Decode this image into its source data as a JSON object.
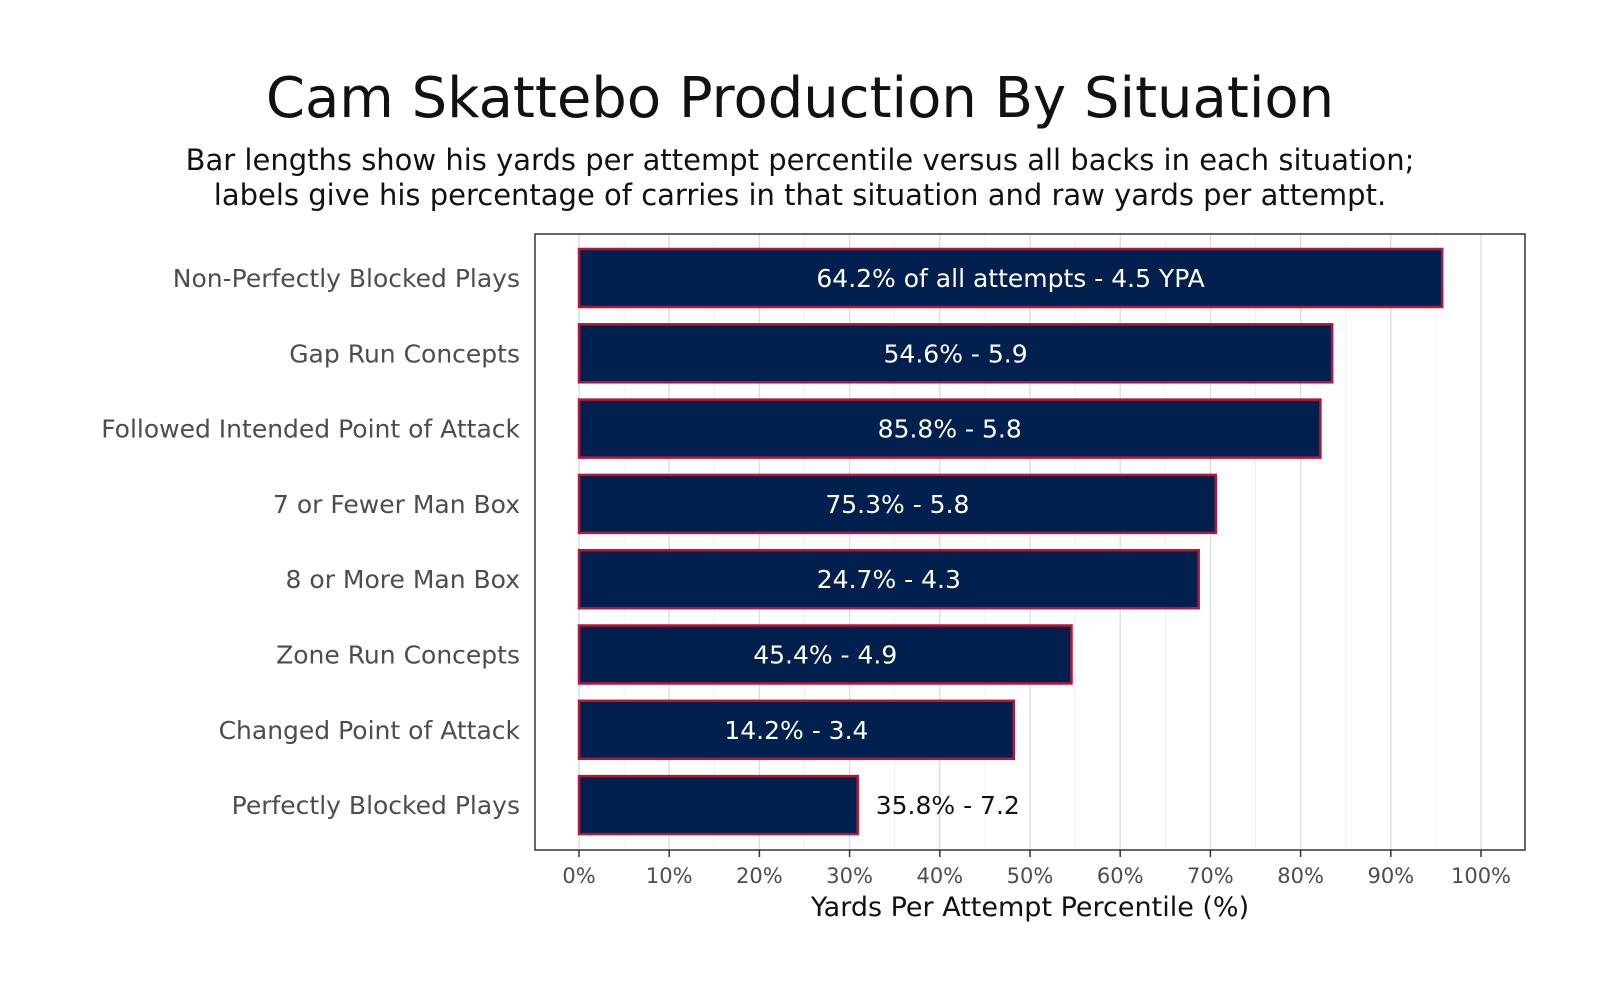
{
  "colors": {
    "bar_fill": "#01204e",
    "bar_border": "#b5173a",
    "grid_major": "#dedede",
    "grid_minor": "#f0f0f0",
    "panel_border": "#333333"
  },
  "chart_data": {
    "type": "bar",
    "orientation": "horizontal",
    "title": "Cam Skattebo Production By Situation",
    "subtitle_lines": [
      "Bar lengths show his yards per attempt percentile versus all backs in each situation;",
      "labels give his percentage of carries in that situation and raw yards per attempt."
    ],
    "xlabel": "Yards Per Attempt Percentile (%)",
    "ylabel": "",
    "xlim": [
      0,
      100
    ],
    "x_ticks": [
      "0%",
      "10%",
      "20%",
      "30%",
      "40%",
      "50%",
      "60%",
      "70%",
      "80%",
      "90%",
      "100%"
    ],
    "grid": true,
    "categories": [
      "Non-Perfectly Blocked Plays",
      "Gap Run Concepts",
      "Followed Intended Point of Attack",
      "7 or Fewer Man Box",
      "8 or More Man Box",
      "Zone Run Concepts",
      "Changed Point of Attack",
      "Perfectly Blocked Plays"
    ],
    "values": [
      95.7,
      83.5,
      82.2,
      70.6,
      68.7,
      54.6,
      48.2,
      30.9
    ],
    "labels": [
      "64.2% of all attempts - 4.5 YPA",
      "54.6% - 5.9",
      "85.8% - 5.8",
      "75.3% - 5.8",
      "24.7% - 4.3",
      "45.4% - 4.9",
      "14.2% - 3.4",
      "35.8% - 7.2"
    ]
  }
}
